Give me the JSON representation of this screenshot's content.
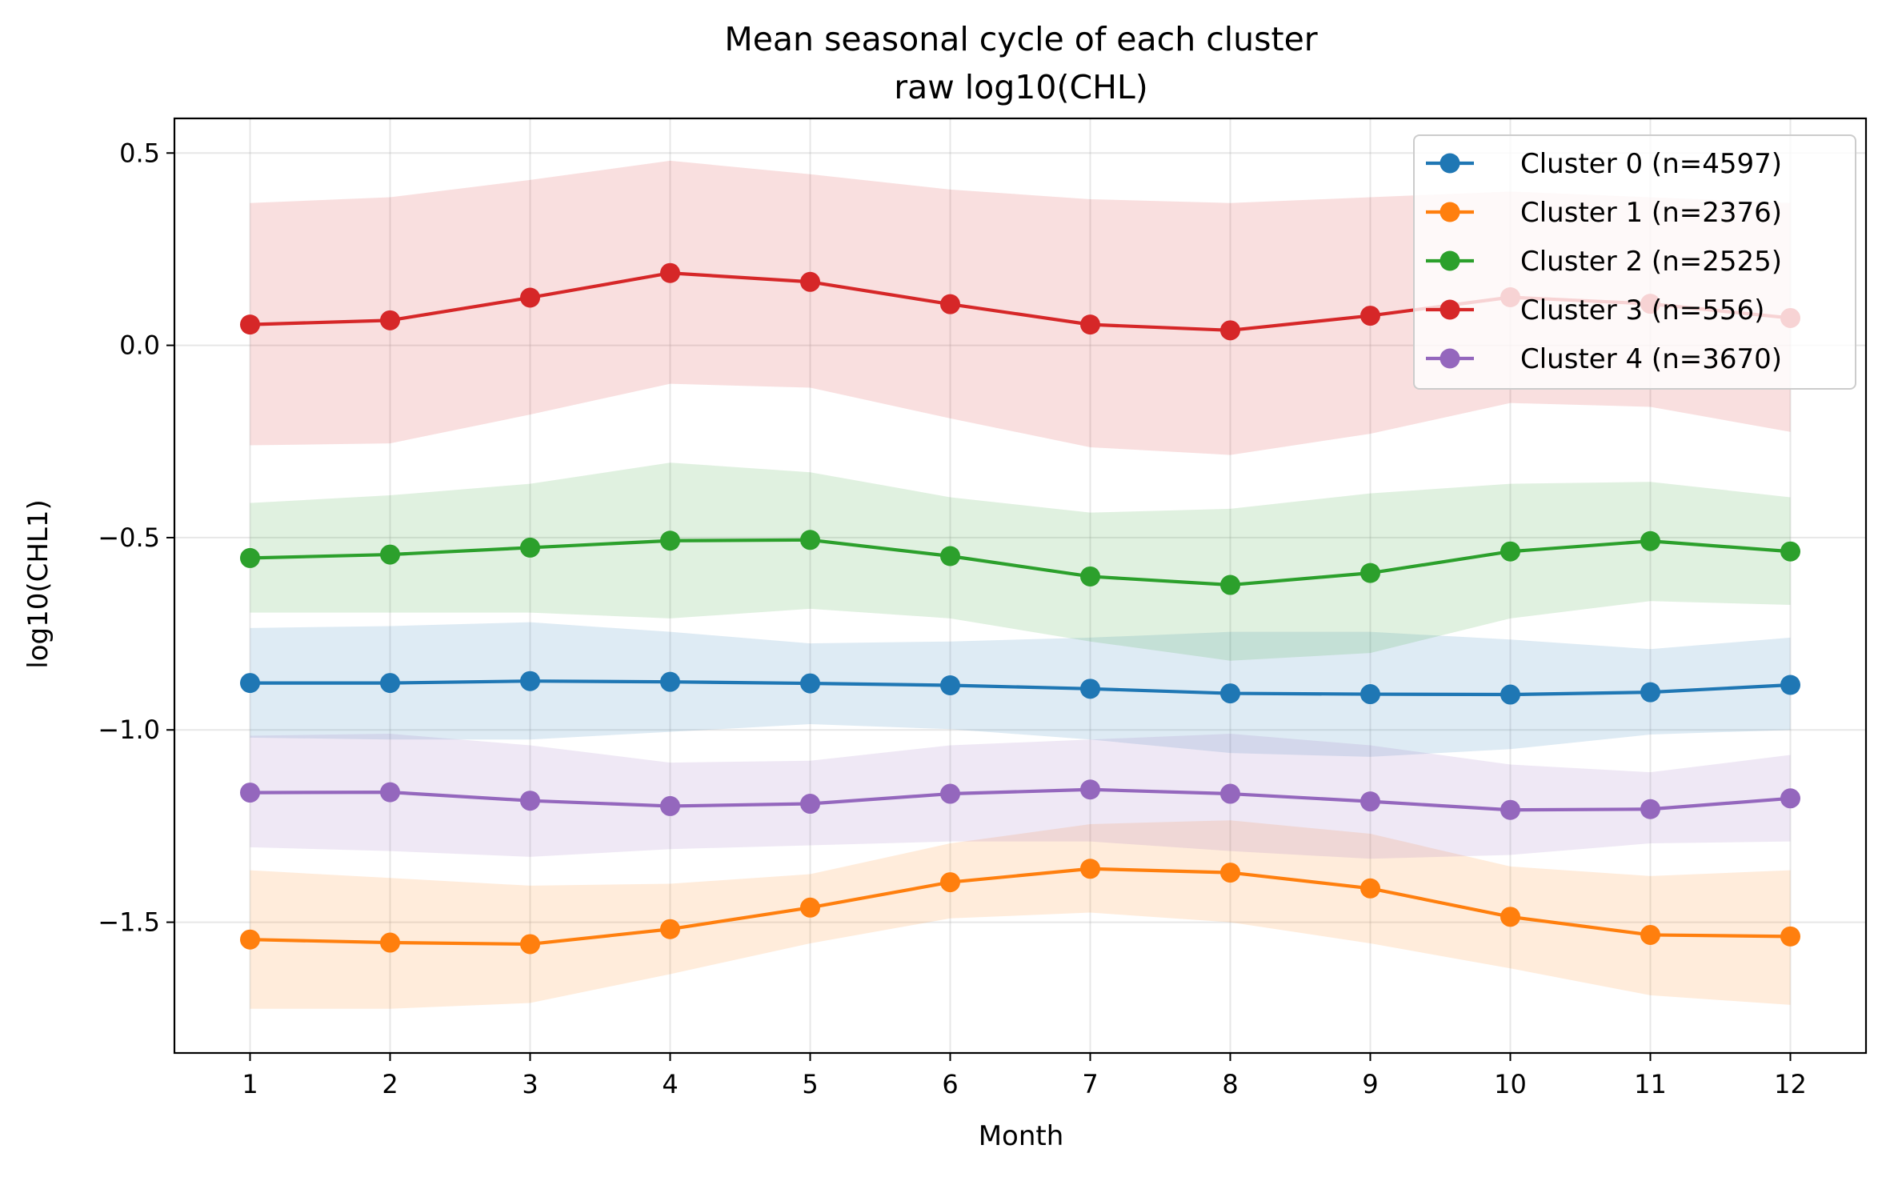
{
  "chart_data": {
    "type": "line",
    "title": "Mean seasonal cycle of each cluster",
    "subtitle": "raw log10(CHL)",
    "xlabel": "Month",
    "ylabel": "log10(CHL1)",
    "x": [
      1,
      2,
      3,
      4,
      5,
      6,
      7,
      8,
      9,
      10,
      11,
      12
    ],
    "x_ticks": [
      "1",
      "2",
      "3",
      "4",
      "5",
      "6",
      "7",
      "8",
      "9",
      "10",
      "11",
      "12"
    ],
    "xlim": [
      0.46,
      12.54
    ],
    "ylim": [
      -1.84,
      0.59
    ],
    "y_ticks": [
      0.5,
      0.0,
      -0.5,
      -1.0,
      -1.5
    ],
    "y_tick_labels": [
      "0.5",
      "0.0",
      "−0.5",
      "−1.0",
      "−1.5"
    ],
    "grid": true,
    "legend_position": "top-right",
    "series": [
      {
        "name": "Cluster 0 (n=4597)",
        "color": "#1f77b4",
        "values": [
          -0.878,
          -0.878,
          -0.873,
          -0.875,
          -0.879,
          -0.884,
          -0.893,
          -0.905,
          -0.907,
          -0.908,
          -0.902,
          -0.883
        ],
        "band_upper": [
          -0.735,
          -0.73,
          -0.72,
          -0.745,
          -0.775,
          -0.77,
          -0.76,
          -0.745,
          -0.745,
          -0.765,
          -0.79,
          -0.76
        ],
        "band_lower": [
          -1.02,
          -1.025,
          -1.025,
          -1.005,
          -0.985,
          -0.998,
          -1.025,
          -1.06,
          -1.07,
          -1.05,
          -1.012,
          -1.0
        ]
      },
      {
        "name": "Cluster 1 (n=2376)",
        "color": "#ff7f0e",
        "values": [
          -1.545,
          -1.553,
          -1.557,
          -1.518,
          -1.462,
          -1.396,
          -1.361,
          -1.371,
          -1.412,
          -1.486,
          -1.533,
          -1.537
        ],
        "band_upper": [
          -1.365,
          -1.385,
          -1.405,
          -1.4,
          -1.375,
          -1.295,
          -1.245,
          -1.235,
          -1.27,
          -1.355,
          -1.38,
          -1.365
        ],
        "band_lower": [
          -1.725,
          -1.725,
          -1.71,
          -1.635,
          -1.555,
          -1.49,
          -1.475,
          -1.5,
          -1.555,
          -1.62,
          -1.69,
          -1.715
        ]
      },
      {
        "name": "Cluster 2 (n=2525)",
        "color": "#2ca02c",
        "values": [
          -0.553,
          -0.544,
          -0.526,
          -0.508,
          -0.506,
          -0.548,
          -0.601,
          -0.623,
          -0.592,
          -0.536,
          -0.509,
          -0.536
        ],
        "band_upper": [
          -0.41,
          -0.39,
          -0.36,
          -0.305,
          -0.33,
          -0.395,
          -0.435,
          -0.425,
          -0.385,
          -0.36,
          -0.355,
          -0.395
        ],
        "band_lower": [
          -0.695,
          -0.695,
          -0.695,
          -0.71,
          -0.685,
          -0.71,
          -0.77,
          -0.82,
          -0.8,
          -0.71,
          -0.665,
          -0.675
        ]
      },
      {
        "name": "Cluster 3 (n=556)",
        "color": "#d62728",
        "values": [
          0.054,
          0.065,
          0.124,
          0.188,
          0.165,
          0.107,
          0.054,
          0.039,
          0.077,
          0.125,
          0.108,
          0.071
        ],
        "band_upper": [
          0.37,
          0.385,
          0.43,
          0.48,
          0.445,
          0.405,
          0.38,
          0.37,
          0.385,
          0.4,
          0.385,
          0.37
        ],
        "band_lower": [
          -0.26,
          -0.255,
          -0.18,
          -0.1,
          -0.11,
          -0.19,
          -0.265,
          -0.285,
          -0.23,
          -0.15,
          -0.16,
          -0.225
        ]
      },
      {
        "name": "Cluster 4 (n=3670)",
        "color": "#9467bd",
        "values": [
          -1.163,
          -1.162,
          -1.184,
          -1.198,
          -1.192,
          -1.166,
          -1.155,
          -1.166,
          -1.186,
          -1.208,
          -1.206,
          -1.178
        ],
        "band_upper": [
          -1.015,
          -1.01,
          -1.04,
          -1.085,
          -1.08,
          -1.04,
          -1.025,
          -1.01,
          -1.04,
          -1.09,
          -1.11,
          -1.065
        ],
        "band_lower": [
          -1.305,
          -1.315,
          -1.33,
          -1.31,
          -1.3,
          -1.29,
          -1.29,
          -1.315,
          -1.335,
          -1.325,
          -1.295,
          -1.29
        ]
      }
    ]
  }
}
